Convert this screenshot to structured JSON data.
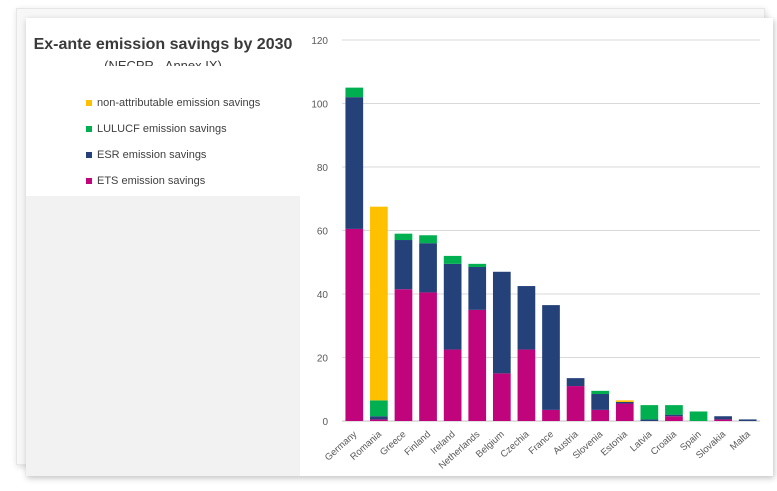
{
  "chart_data": {
    "type": "bar",
    "stacked": true,
    "title": "Ex-ante emission savings by 2030",
    "subtitle": "(NECPR - Annex IX)",
    "categories": [
      "Germany",
      "Romania",
      "Greece",
      "Finland",
      "Ireland",
      "Netherlands",
      "Belgium",
      "Czechia",
      "France",
      "Austria",
      "Slovenia",
      "Estonia",
      "Latvia",
      "Croatia",
      "Spain",
      "Slovakia",
      "Malta"
    ],
    "series": [
      {
        "name": "ETS emission savings",
        "color": "#c0047c",
        "values": [
          60.5,
          0.5,
          41.5,
          40.5,
          22.5,
          35,
          15,
          22.5,
          3.5,
          11,
          3.5,
          5.5,
          0,
          1.5,
          0,
          0.5,
          0
        ]
      },
      {
        "name": "ESR emission savings",
        "color": "#24417a",
        "values": [
          41.5,
          1,
          15.5,
          15.5,
          27,
          13.5,
          32,
          20,
          33,
          2.5,
          5,
          0.5,
          0.5,
          0.5,
          0,
          1,
          0.5
        ]
      },
      {
        "name": "LULUCF emission savings",
        "color": "#00b050",
        "values": [
          3,
          5,
          2,
          2.5,
          2.5,
          1,
          0,
          0,
          0,
          0,
          1,
          0,
          4.5,
          3,
          3,
          0,
          0
        ]
      },
      {
        "name": "non-attributable emission savings",
        "color": "#ffc000",
        "values": [
          0,
          61,
          0,
          0,
          0,
          0,
          0,
          0,
          0,
          0,
          0,
          0.5,
          0,
          0,
          0,
          0,
          0
        ]
      }
    ],
    "legend_order": [
      "non-attributable emission savings",
      "LULUCF emission savings",
      "ESR emission savings",
      "ETS emission savings"
    ],
    "yticks": [
      "0",
      "20",
      "40",
      "60",
      "80",
      "100",
      "120"
    ],
    "ylim": [
      0,
      120
    ],
    "grid": true,
    "legend_position": "left"
  }
}
